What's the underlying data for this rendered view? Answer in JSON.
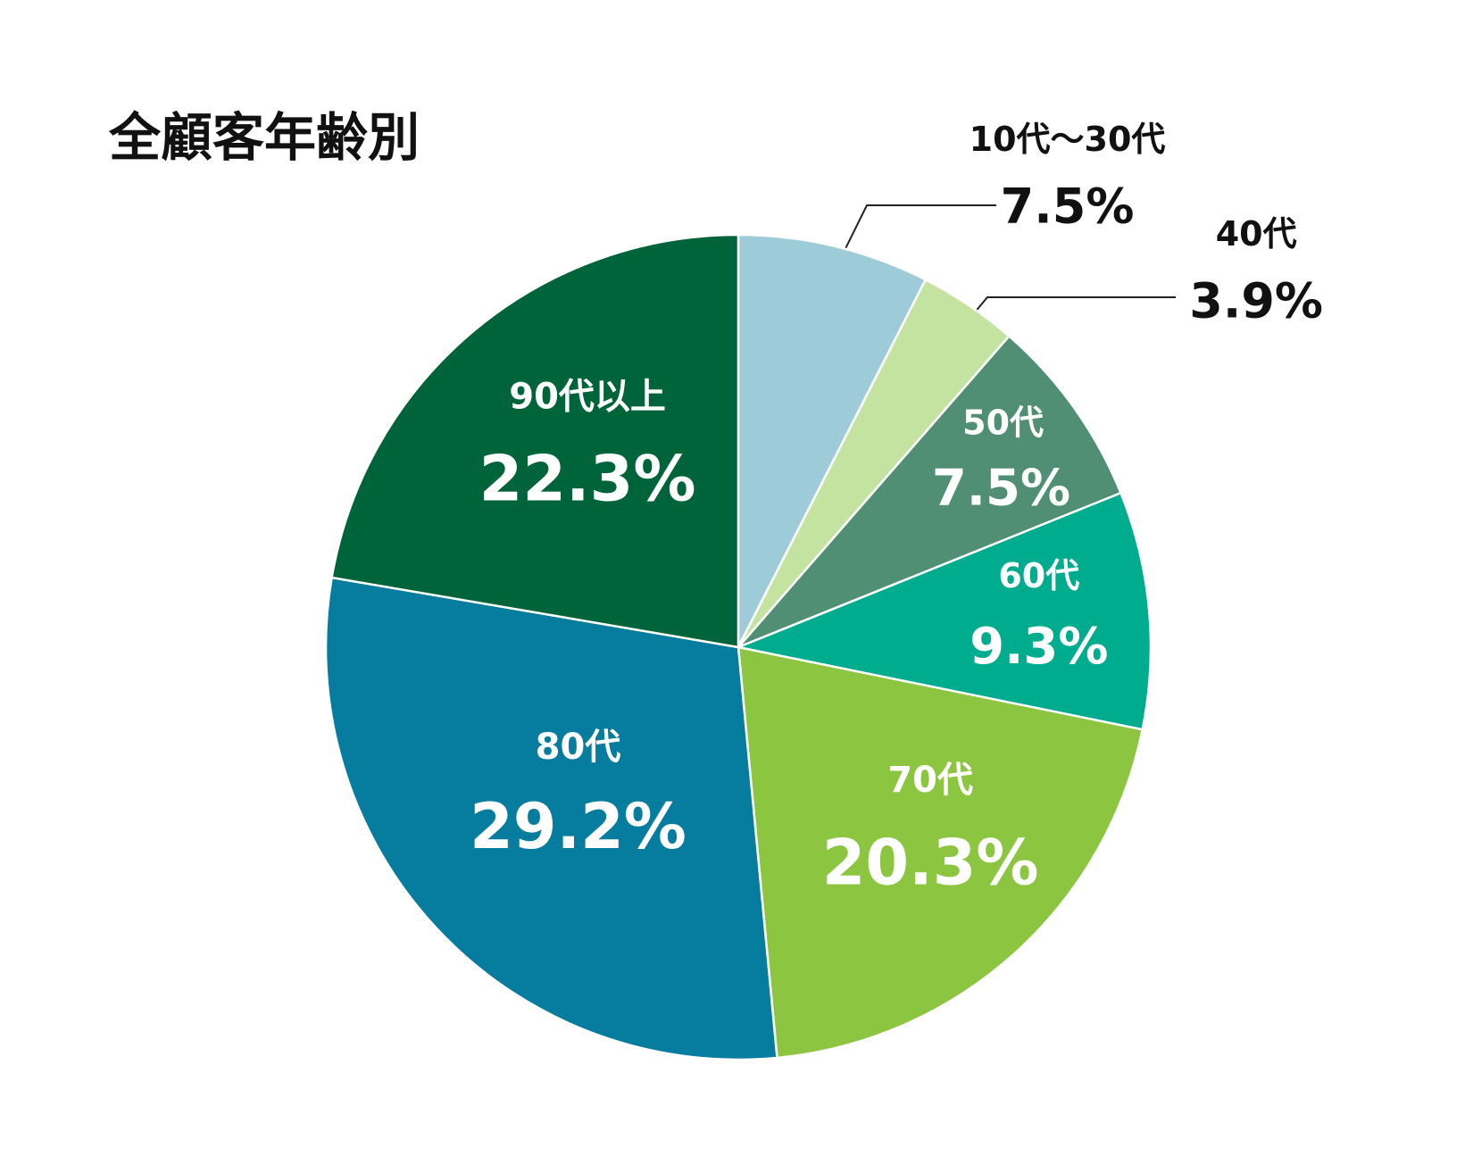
{
  "chart_data": {
    "type": "pie",
    "title": "全顧客年齢別",
    "categories": [
      "10代〜30代",
      "40代",
      "50代",
      "60代",
      "70代",
      "80代",
      "90代以上"
    ],
    "values": [
      7.5,
      3.9,
      7.5,
      9.3,
      20.3,
      29.2,
      22.3
    ],
    "value_labels": [
      "7.5%",
      "3.9%",
      "7.5%",
      "9.3%",
      "20.3%",
      "29.2%",
      "22.3%"
    ],
    "colors": [
      "#9ecbd8",
      "#c5e3a0",
      "#518f74",
      "#00ac8e",
      "#8cc540",
      "#067c9e",
      "#00643a"
    ]
  }
}
